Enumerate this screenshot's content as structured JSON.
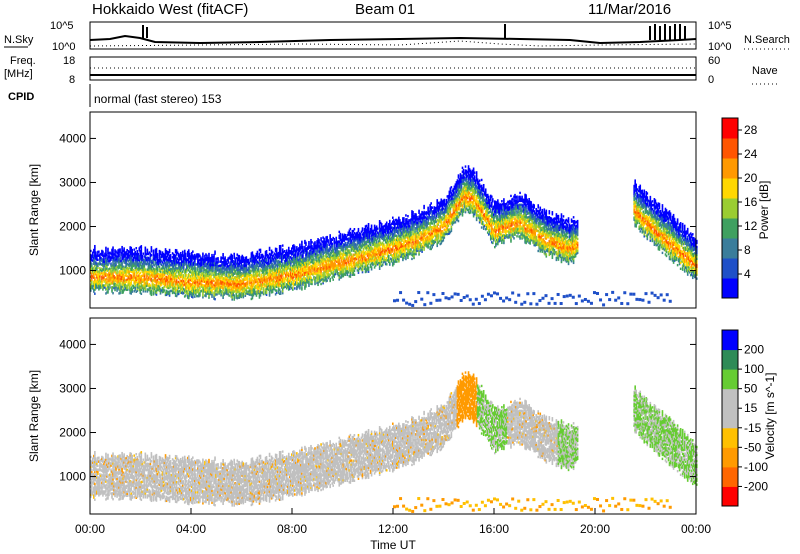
{
  "header": {
    "station": "Hokkaido West (fitACF)",
    "beam": "Beam 01",
    "date": "11/Mar/2016"
  },
  "top_panels": {
    "nsky_label": "N.Sky",
    "nsky_ticks": [
      "10^5",
      "10^0"
    ],
    "nsearch_label": "N.Search",
    "nsearch_ticks": [
      "10^5",
      "10^0"
    ],
    "freq_label": "Freq.",
    "freq_unit": "[MHz]",
    "freq_ticks": [
      "18",
      "8"
    ],
    "nave_label": "Nave",
    "nave_ticks": [
      "60",
      "0"
    ],
    "cpid_label": "CPID",
    "cpid_value": "normal (fast stereo) 153"
  },
  "colors": {
    "power_bar": [
      "#0000ff",
      "#1f50c8",
      "#3a7d9b",
      "#3fa060",
      "#9acd32",
      "#ffd700",
      "#ff9900",
      "#ff5500",
      "#ff0000"
    ],
    "velocity_bar": [
      "#ff0000",
      "#ff6600",
      "#ff9a00",
      "#ffc000",
      "#c0c0c0",
      "#c0c0c0",
      "#66cc33",
      "#2e8b57",
      "#0000ff"
    ],
    "background_scatter": "#c0c0c0"
  },
  "chart_data": [
    {
      "type": "heatmap",
      "name": "power",
      "ylabel": "Slant Range [km]",
      "xlabel": "",
      "y_ticks": [
        "1000",
        "2000",
        "3000",
        "4000"
      ],
      "ylim": [
        150,
        4600
      ],
      "colorbar_label": "Power [dB]",
      "colorbar_ticks": [
        "4",
        "8",
        "12",
        "16",
        "20",
        "24",
        "28"
      ],
      "colorbar_range": [
        0,
        30
      ],
      "bands": [
        {
          "x": [
            0,
            2,
            4,
            6,
            8,
            10,
            12,
            13,
            14,
            14.8,
            15.2,
            16,
            17,
            18,
            19,
            19.3
          ],
          "y": [
            950,
            950,
            850,
            800,
            1000,
            1300,
            1600,
            1800,
            2100,
            2800,
            2700,
            2000,
            2200,
            1800,
            1600,
            1700
          ]
        },
        {
          "x": [
            21.5,
            22,
            23,
            24
          ],
          "y": [
            2500,
            2200,
            1700,
            1200
          ]
        }
      ]
    },
    {
      "type": "heatmap",
      "name": "velocity",
      "ylabel": "Slant Range [km]",
      "xlabel": "Time UT",
      "x_ticks": [
        "00:00",
        "04:00",
        "08:00",
        "12:00",
        "16:00",
        "20:00",
        "00:00"
      ],
      "y_ticks": [
        "1000",
        "2000",
        "3000",
        "4000"
      ],
      "ylim": [
        150,
        4600
      ],
      "colorbar_label": "Velocity [m s^-1]",
      "colorbar_ticks": [
        "-200",
        "-100",
        "-50",
        "-15",
        "15",
        "50",
        "100",
        "200"
      ],
      "colorbar_range": [
        -250,
        250
      ]
    }
  ]
}
